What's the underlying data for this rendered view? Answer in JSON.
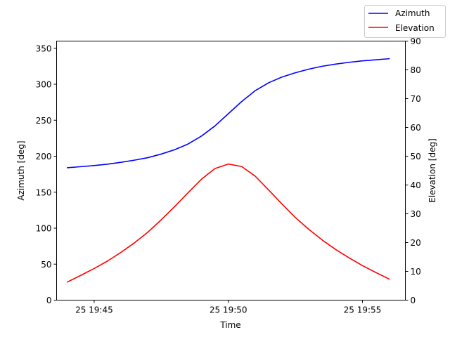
{
  "chart_data": {
    "type": "line",
    "xlabel": "Time",
    "ylabel_left": "Azimuth [deg]",
    "ylabel_right": "Elevation [deg]",
    "x_axis": {
      "unit": "minutes past 19:00 on day 25",
      "range": [
        43.6,
        56.6
      ],
      "ticks": [
        {
          "value": 45,
          "label": "25 19:45"
        },
        {
          "value": 50,
          "label": "25 19:50"
        },
        {
          "value": 55,
          "label": "25 19:55"
        }
      ]
    },
    "y_left": {
      "range": [
        0,
        360
      ],
      "ticks": [
        0,
        50,
        100,
        150,
        200,
        250,
        300,
        350
      ]
    },
    "y_right": {
      "range": [
        0,
        90
      ],
      "ticks": [
        0,
        10,
        20,
        30,
        40,
        50,
        60,
        70,
        80,
        90
      ]
    },
    "legend": {
      "placement": "top-right"
    },
    "grid": false,
    "x": [
      44.0,
      44.5,
      45.0,
      45.5,
      46.0,
      46.5,
      47.0,
      47.5,
      48.0,
      48.5,
      49.0,
      49.5,
      50.0,
      50.5,
      51.0,
      51.5,
      52.0,
      52.5,
      53.0,
      53.5,
      54.0,
      54.5,
      55.0,
      55.5,
      56.0
    ],
    "series": [
      {
        "name": "Azimuth",
        "axis": "left",
        "color": "#0000ff",
        "values": [
          184,
          185.5,
          187,
          189,
          191.5,
          194.5,
          198,
          203,
          209,
          217,
          228,
          242,
          259,
          276,
          291,
          302,
          310,
          316,
          321,
          325,
          328,
          330.5,
          332.5,
          334,
          335.5
        ]
      },
      {
        "name": "Elevation",
        "axis": "right",
        "color": "#ff0000",
        "values": [
          6.3,
          8.6,
          11.0,
          13.6,
          16.6,
          19.9,
          23.6,
          27.9,
          32.5,
          37.3,
          42.0,
          45.7,
          47.3,
          46.4,
          43.1,
          38.3,
          33.4,
          28.7,
          24.6,
          20.9,
          17.6,
          14.7,
          12.0,
          9.6,
          7.3
        ]
      }
    ]
  }
}
